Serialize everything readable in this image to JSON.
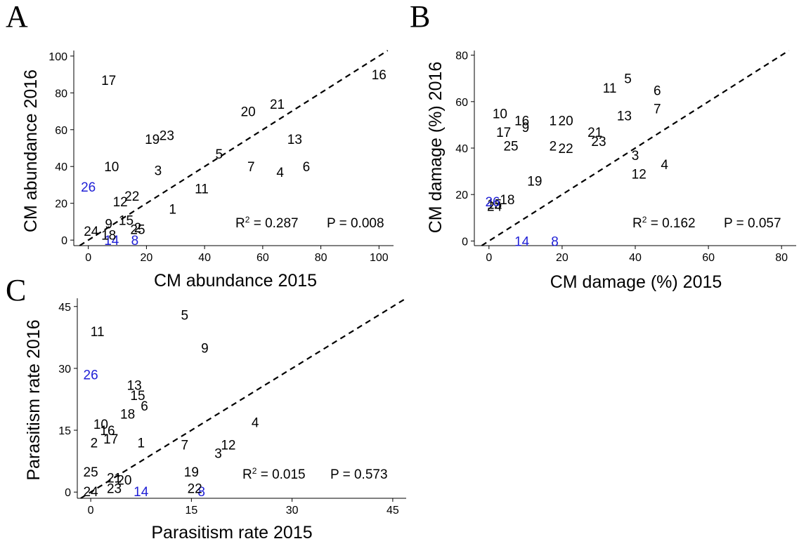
{
  "colors": {
    "highlight": "#1f1fd6",
    "default": "#000000"
  },
  "chart_data": [
    {
      "panel": "A",
      "type": "scatter",
      "xlabel": "CM abundance 2015",
      "ylabel": "CM abundance 2016",
      "xlim": [
        -5,
        105
      ],
      "ylim": [
        -3,
        103
      ],
      "xticks": [
        0,
        20,
        40,
        60,
        80,
        100
      ],
      "yticks": [
        0,
        20,
        40,
        60,
        80,
        100
      ],
      "reference_line": "y = x (dashed)",
      "r2_text": "0.287",
      "p_text": "P = 0.008",
      "highlighted": [
        "26",
        "14",
        "8"
      ],
      "points": [
        {
          "label": "1",
          "x": 29,
          "y": 17
        },
        {
          "label": "2",
          "x": 17,
          "y": 7
        },
        {
          "label": "3",
          "x": 24,
          "y": 38
        },
        {
          "label": "4",
          "x": 66,
          "y": 37
        },
        {
          "label": "5",
          "x": 45,
          "y": 47
        },
        {
          "label": "6",
          "x": 75,
          "y": 40
        },
        {
          "label": "7",
          "x": 56,
          "y": 40
        },
        {
          "label": "8",
          "x": 16,
          "y": 0
        },
        {
          "label": "9",
          "x": 7,
          "y": 9
        },
        {
          "label": "10",
          "x": 8,
          "y": 40
        },
        {
          "label": "11",
          "x": 39,
          "y": 28
        },
        {
          "label": "12",
          "x": 11,
          "y": 21
        },
        {
          "label": "13",
          "x": 71,
          "y": 55
        },
        {
          "label": "14",
          "x": 8,
          "y": 0
        },
        {
          "label": "15",
          "x": 13,
          "y": 11
        },
        {
          "label": "16",
          "x": 100,
          "y": 90
        },
        {
          "label": "17",
          "x": 7,
          "y": 87
        },
        {
          "label": "18",
          "x": 7,
          "y": 3
        },
        {
          "label": "19",
          "x": 22,
          "y": 55
        },
        {
          "label": "20",
          "x": 55,
          "y": 70
        },
        {
          "label": "21",
          "x": 65,
          "y": 74
        },
        {
          "label": "22",
          "x": 15,
          "y": 24
        },
        {
          "label": "23",
          "x": 27,
          "y": 57
        },
        {
          "label": "24",
          "x": 1,
          "y": 5
        },
        {
          "label": "25",
          "x": 17,
          "y": 6
        },
        {
          "label": "26",
          "x": 0,
          "y": 29
        }
      ]
    },
    {
      "panel": "B",
      "type": "scatter",
      "xlabel": "CM damage (%) 2015",
      "ylabel": "CM damage (%) 2016",
      "xlim": [
        -4,
        84
      ],
      "ylim": [
        -2,
        82
      ],
      "xticks": [
        0,
        20,
        40,
        60,
        80
      ],
      "yticks": [
        0,
        20,
        40,
        60,
        80
      ],
      "reference_line": "y = x (dashed)",
      "r2_text": "0.162",
      "p_text": "P = 0.057",
      "highlighted": [
        "26",
        "14",
        "8"
      ],
      "points": [
        {
          "label": "1",
          "x": 17.5,
          "y": 52
        },
        {
          "label": "2",
          "x": 17.5,
          "y": 41
        },
        {
          "label": "3",
          "x": 40,
          "y": 37
        },
        {
          "label": "4",
          "x": 48,
          "y": 33
        },
        {
          "label": "5",
          "x": 38,
          "y": 70
        },
        {
          "label": "6",
          "x": 46,
          "y": 65
        },
        {
          "label": "7",
          "x": 46,
          "y": 57
        },
        {
          "label": "8",
          "x": 18,
          "y": 0
        },
        {
          "label": "9",
          "x": 10,
          "y": 49
        },
        {
          "label": "10",
          "x": 3,
          "y": 55
        },
        {
          "label": "11",
          "x": 33,
          "y": 66
        },
        {
          "label": "12",
          "x": 41,
          "y": 29
        },
        {
          "label": "13",
          "x": 37,
          "y": 54
        },
        {
          "label": "14",
          "x": 9,
          "y": 0
        },
        {
          "label": "15",
          "x": 1.5,
          "y": 16
        },
        {
          "label": "16",
          "x": 9,
          "y": 52
        },
        {
          "label": "17",
          "x": 4,
          "y": 47
        },
        {
          "label": "18",
          "x": 5,
          "y": 18
        },
        {
          "label": "19",
          "x": 12.5,
          "y": 26
        },
        {
          "label": "20",
          "x": 21,
          "y": 52
        },
        {
          "label": "21",
          "x": 29,
          "y": 47
        },
        {
          "label": "22",
          "x": 21,
          "y": 40
        },
        {
          "label": "23",
          "x": 30,
          "y": 43
        },
        {
          "label": "24",
          "x": 1.5,
          "y": 15
        },
        {
          "label": "25",
          "x": 6,
          "y": 41
        },
        {
          "label": "26",
          "x": 1,
          "y": 17
        }
      ]
    },
    {
      "panel": "C",
      "type": "scatter",
      "xlabel": "Parasitism rate 2015",
      "ylabel": "Parasitism rate 2016",
      "xlim": [
        -2,
        47
      ],
      "ylim": [
        -1.5,
        47
      ],
      "xticks": [
        0,
        15,
        30,
        45
      ],
      "yticks": [
        0,
        15,
        30,
        45
      ],
      "reference_line": "y = x (dashed)",
      "r2_text": "0.015",
      "p_text": "P = 0.573",
      "highlighted": [
        "26",
        "14",
        "8"
      ],
      "points": [
        {
          "label": "1",
          "x": 7.5,
          "y": 12
        },
        {
          "label": "2",
          "x": 0.5,
          "y": 12
        },
        {
          "label": "3",
          "x": 19,
          "y": 9.5
        },
        {
          "label": "4",
          "x": 24.5,
          "y": 17
        },
        {
          "label": "5",
          "x": 14,
          "y": 43
        },
        {
          "label": "6",
          "x": 8,
          "y": 21
        },
        {
          "label": "7",
          "x": 14,
          "y": 11.5
        },
        {
          "label": "8",
          "x": 16.5,
          "y": 0.2
        },
        {
          "label": "9",
          "x": 17,
          "y": 35
        },
        {
          "label": "10",
          "x": 1.5,
          "y": 16.5
        },
        {
          "label": "11",
          "x": 1,
          "y": 39
        },
        {
          "label": "12",
          "x": 20.5,
          "y": 11.5
        },
        {
          "label": "13",
          "x": 6.5,
          "y": 26
        },
        {
          "label": "14",
          "x": 7.5,
          "y": 0.2
        },
        {
          "label": "15",
          "x": 7,
          "y": 23.5
        },
        {
          "label": "16",
          "x": 2.5,
          "y": 15
        },
        {
          "label": "17",
          "x": 3,
          "y": 13
        },
        {
          "label": "18",
          "x": 5.5,
          "y": 19
        },
        {
          "label": "19",
          "x": 15,
          "y": 5
        },
        {
          "label": "20",
          "x": 5,
          "y": 3
        },
        {
          "label": "21",
          "x": 3.5,
          "y": 3.5
        },
        {
          "label": "22",
          "x": 15.5,
          "y": 1
        },
        {
          "label": "23",
          "x": 3.5,
          "y": 1
        },
        {
          "label": "24",
          "x": 0,
          "y": 0.2
        },
        {
          "label": "25",
          "x": 0,
          "y": 5
        },
        {
          "label": "26",
          "x": 0,
          "y": 28.5
        }
      ]
    }
  ]
}
